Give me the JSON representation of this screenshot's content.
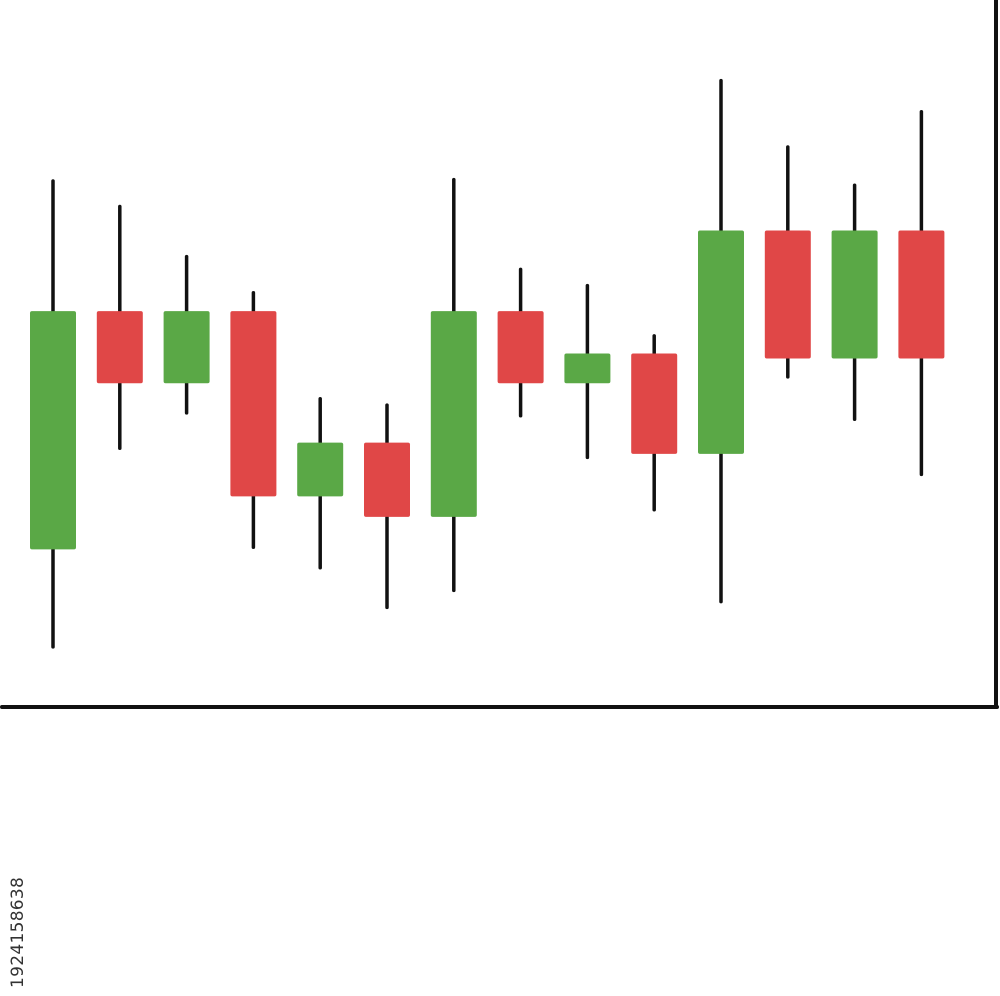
{
  "chart_data": {
    "type": "candlestick",
    "ylim": [
      0,
      100
    ],
    "grid": false,
    "colors": {
      "up": "#5aa846",
      "down": "#e04747",
      "axis": "#111111",
      "wick": "#111111"
    },
    "candles": [
      {
        "open": 22.3,
        "close": 56.0,
        "high": 74.4,
        "low": 8.5
      },
      {
        "open": 56.0,
        "close": 45.8,
        "high": 70.8,
        "low": 36.6
      },
      {
        "open": 45.8,
        "close": 56.0,
        "high": 63.7,
        "low": 41.6
      },
      {
        "open": 56.0,
        "close": 29.8,
        "high": 58.6,
        "low": 22.6
      },
      {
        "open": 29.8,
        "close": 37.4,
        "high": 43.6,
        "low": 19.7
      },
      {
        "open": 37.4,
        "close": 26.9,
        "high": 42.7,
        "low": 14.1
      },
      {
        "open": 26.9,
        "close": 56.0,
        "high": 74.6,
        "low": 16.5
      },
      {
        "open": 56.0,
        "close": 45.8,
        "high": 61.9,
        "low": 41.2
      },
      {
        "open": 45.8,
        "close": 50.0,
        "high": 59.6,
        "low": 35.3
      },
      {
        "open": 50.0,
        "close": 35.8,
        "high": 52.5,
        "low": 27.9
      },
      {
        "open": 35.8,
        "close": 67.4,
        "high": 88.6,
        "low": 14.9
      },
      {
        "open": 67.4,
        "close": 49.3,
        "high": 79.2,
        "low": 46.7
      },
      {
        "open": 49.3,
        "close": 67.4,
        "high": 73.8,
        "low": 40.7
      },
      {
        "open": 67.4,
        "close": 49.3,
        "high": 84.2,
        "low": 32.9
      }
    ]
  },
  "watermark": "1924158638"
}
